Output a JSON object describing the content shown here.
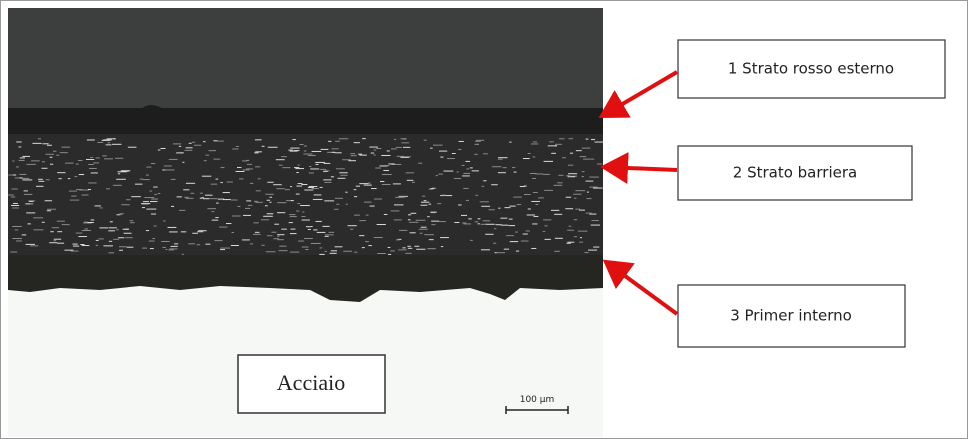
{
  "labels": [
    {
      "text": "1 Strato rosso esterno"
    },
    {
      "text": "2 Strato barriera"
    },
    {
      "text": "3 Primer interno"
    }
  ],
  "material": "Acciaio",
  "scale_bar": "100 µm"
}
